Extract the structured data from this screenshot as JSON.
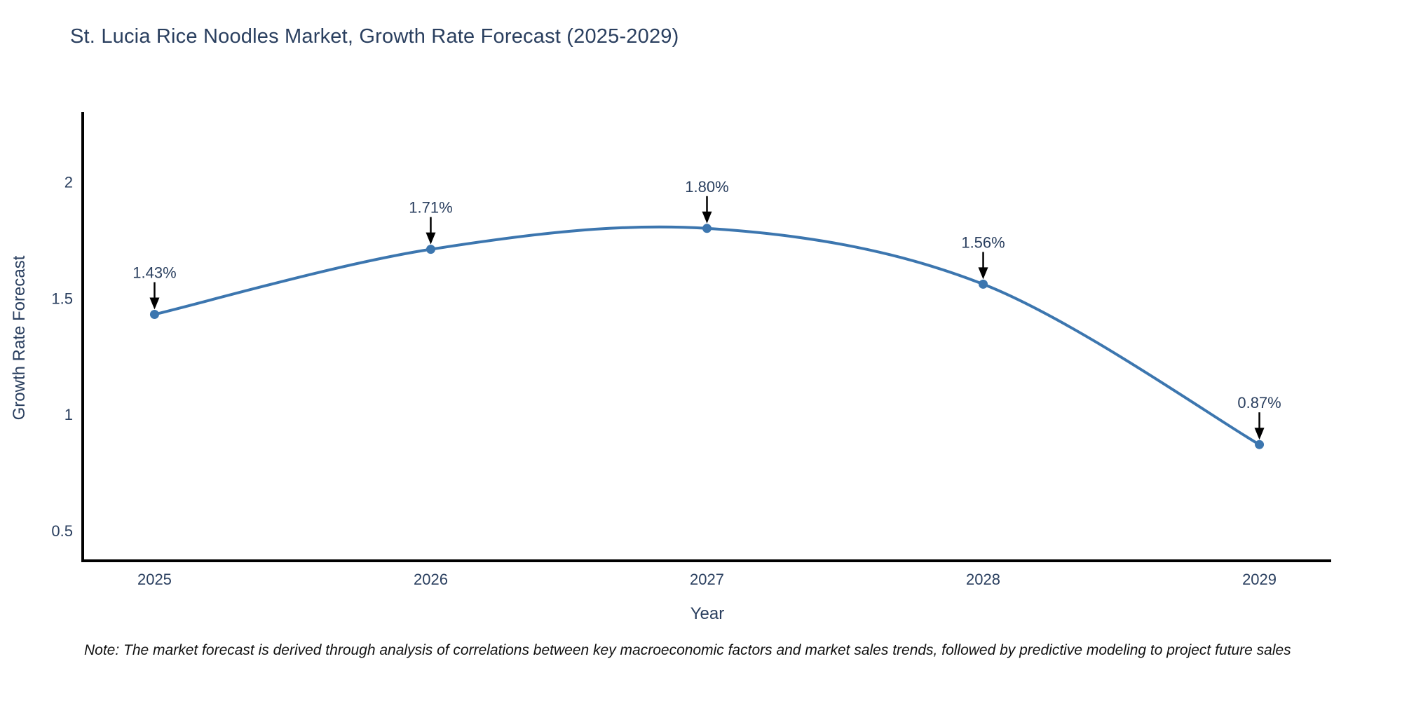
{
  "page": {
    "title": "St. Lucia Rice Noodles Market, Growth Rate Forecast (2025-2029)",
    "note": "Note: The market forecast is derived through analysis of correlations between key macroeconomic factors and market sales trends, followed by predictive modeling to project future sales"
  },
  "chart_data": {
    "type": "line",
    "title": "St. Lucia Rice Noodles Market, Growth Rate Forecast (2025-2029)",
    "xlabel": "Year",
    "ylabel": "Growth Rate Forecast",
    "x": [
      2025,
      2026,
      2027,
      2028,
      2029
    ],
    "y": [
      1.43,
      1.71,
      1.8,
      1.56,
      0.87
    ],
    "series": [
      {
        "name": "Growth Rate Forecast",
        "values": [
          1.43,
          1.71,
          1.8,
          1.56,
          0.87
        ]
      }
    ],
    "point_labels": [
      "1.43%",
      "1.71%",
      "1.80%",
      "1.56%",
      "0.87%"
    ],
    "xtick_labels": [
      "2025",
      "2026",
      "2027",
      "2028",
      "2029"
    ],
    "ytick_labels": [
      "0.5",
      "1",
      "1.5",
      "2"
    ],
    "ytick_values": [
      0.5,
      1,
      1.5,
      2
    ],
    "xlim": [
      2024.74,
      2029.26
    ],
    "ylim": [
      0.37,
      2.3
    ],
    "grid": false,
    "legend_position": "none",
    "curve": "spline",
    "colors": {
      "line": "#3c76af",
      "marker": "#3c76af",
      "axis": "#010101",
      "tick_text": "#2a3f5f",
      "annotation_text": "#2a3f5f",
      "arrow": "#000000",
      "background": "#ffffff"
    }
  }
}
